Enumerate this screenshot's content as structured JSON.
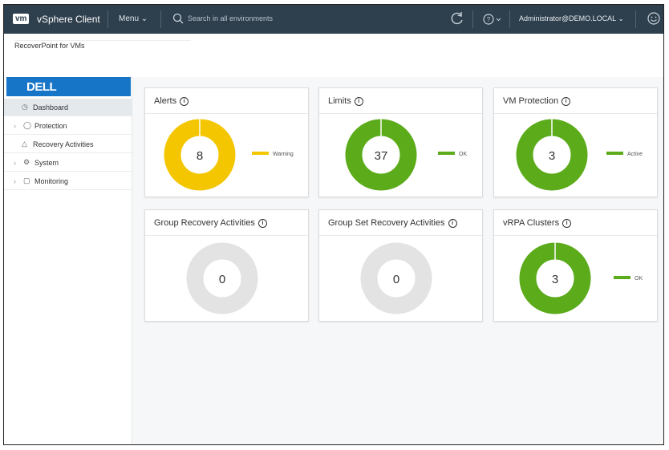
{
  "topbar": {
    "logo": "vm",
    "app_name": "vSphere Client",
    "menu_label": "Menu",
    "search_placeholder": "Search in all environments",
    "user": "Administrator@DEMO.LOCAL"
  },
  "page": {
    "title": "RecoverPoint for VMs"
  },
  "sidebar": {
    "brand": "DELL",
    "items": [
      {
        "label": "Dashboard"
      },
      {
        "label": "Protection"
      },
      {
        "label": "Recovery Activities"
      },
      {
        "label": "System"
      },
      {
        "label": "Monitoring"
      }
    ]
  },
  "colors": {
    "warning": "#f4c600",
    "ok": "#5bab1a",
    "empty": "#e3e3e3",
    "accent": "#1775c8",
    "topbar": "#2e3f4d"
  },
  "widgets": [
    {
      "title": "Alerts",
      "value": "8",
      "legend": "Warning",
      "color": "#f4c600"
    },
    {
      "title": "Limits",
      "value": "37",
      "legend": "OK",
      "color": "#5bab1a"
    },
    {
      "title": "VM Protection",
      "value": "3",
      "legend": "Active",
      "color": "#5bab1a"
    },
    {
      "title": "Group Recovery Activities",
      "value": "0",
      "legend": "",
      "color": "#e3e3e3"
    },
    {
      "title": "Group Set Recovery Activities",
      "value": "0",
      "legend": "",
      "color": "#e3e3e3"
    },
    {
      "title": "vRPA Clusters",
      "value": "3",
      "legend": "OK",
      "color": "#5bab1a"
    }
  ]
}
